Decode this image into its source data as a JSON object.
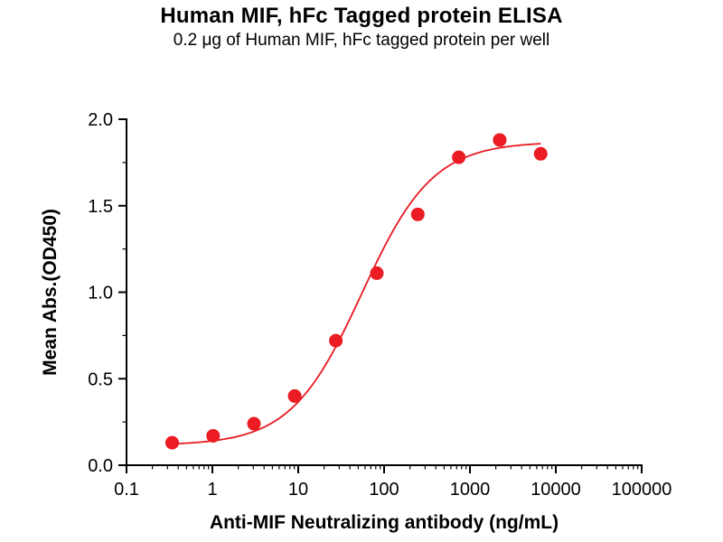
{
  "chart_data": {
    "type": "scatter",
    "title": "Human MIF, hFc Tagged protein ELISA",
    "subtitle": "0.2 μg of Human MIF, hFc tagged protein per well",
    "xlabel": "Anti-MIF Neutralizing antibody (ng/mL)",
    "ylabel": "Mean Abs.(OD450)",
    "x_scale": "log10",
    "xlim": [
      0.1,
      100000
    ],
    "ylim": [
      0.0,
      2.0
    ],
    "x_ticks": [
      0.1,
      1,
      10,
      100,
      1000,
      10000,
      100000
    ],
    "x_tick_labels": [
      "0.1",
      "1",
      "10",
      "100",
      "1000",
      "10000",
      "100000"
    ],
    "y_ticks": [
      0.0,
      0.5,
      1.0,
      1.5,
      2.0
    ],
    "y_tick_labels": [
      "0.0",
      "0.5",
      "1.0",
      "1.5",
      "2.0"
    ],
    "y_minor_step": 0.25,
    "x_minor": "log-decade-2-9",
    "grid": false,
    "legend": null,
    "axis_color": "#000000",
    "marker_color": "#ec1c24",
    "curve_color": "#e8191f",
    "points": [
      {
        "x": 0.34,
        "y": 0.13
      },
      {
        "x": 1.02,
        "y": 0.17
      },
      {
        "x": 3.05,
        "y": 0.24
      },
      {
        "x": 9.1,
        "y": 0.4
      },
      {
        "x": 27.4,
        "y": 0.72
      },
      {
        "x": 82.3,
        "y": 1.11
      },
      {
        "x": 247,
        "y": 1.45
      },
      {
        "x": 741,
        "y": 1.78
      },
      {
        "x": 2222,
        "y": 1.88
      },
      {
        "x": 6667,
        "y": 1.8
      }
    ],
    "fit": {
      "model": "4PL",
      "bottom": 0.115,
      "top": 1.87,
      "ec50": 55,
      "hill": 1.05
    }
  }
}
